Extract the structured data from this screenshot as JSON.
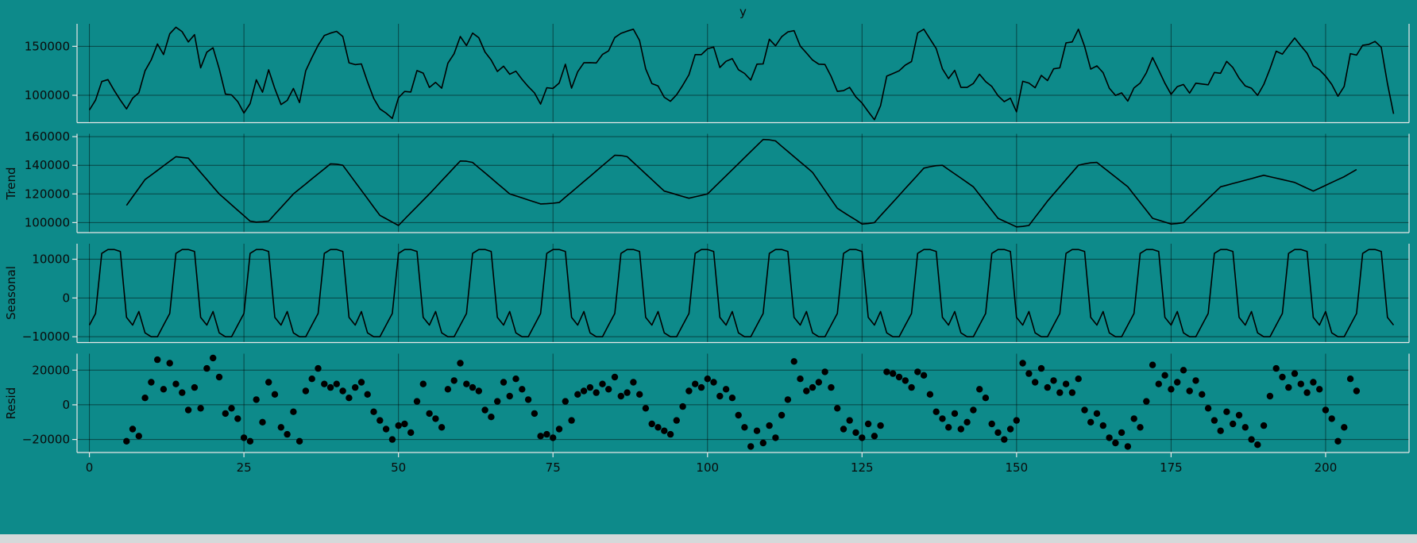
{
  "colors": {
    "background": "#0d8a8a",
    "line": "#000000",
    "grid": "rgba(0,0,0,0.5)",
    "spine": "#e8e8e8",
    "text": "#0a0a0a",
    "bottom_strip": "#d5d9da"
  },
  "x_axis": {
    "ticks": [
      0,
      25,
      50,
      75,
      100,
      125,
      150,
      175,
      200
    ],
    "xlim": [
      -2,
      213.5
    ],
    "xlabel": ""
  },
  "chart_data": [
    {
      "type": "line",
      "name": "y",
      "title": "y",
      "ylabel": "",
      "x_start": 0,
      "yticks": [
        150000,
        100000
      ],
      "ylim": [
        72000,
        173000
      ],
      "values": [
        85000,
        95000,
        114000,
        116000,
        105000,
        95000,
        86000,
        97000,
        102500,
        125000,
        136200,
        152400,
        141600,
        162800,
        169500,
        165000,
        154500,
        162000,
        128000,
        144000,
        148500,
        127000,
        101200,
        100400,
        93600,
        81800,
        91500,
        115800,
        103100,
        126000,
        106800,
        90500,
        94700,
        107000,
        92500,
        125000,
        138500,
        151000,
        161000,
        163500,
        165300,
        160000,
        133200,
        131300,
        132000,
        113700,
        96800,
        86000,
        81700,
        76300,
        97500,
        103900,
        103300,
        125200,
        122600,
        108000,
        113100,
        107200,
        132800,
        142400,
        160000,
        150800,
        163500,
        158800,
        144200,
        136000,
        124300,
        129700,
        121500,
        124600,
        116200,
        108800,
        102400,
        91000,
        107700,
        107000,
        112500,
        131700,
        107300,
        124000,
        133200,
        133300,
        133000,
        141700,
        145300,
        159000,
        163300,
        165500,
        167500,
        156000,
        127000,
        112000,
        109500,
        98000,
        93800,
        100500,
        110200,
        121000,
        141500,
        141500,
        147500,
        149200,
        128400,
        134700,
        137400,
        126100,
        122300,
        115600,
        131800,
        132000,
        157300,
        150500,
        159800,
        164700,
        166000,
        150300,
        143200,
        136000,
        131800,
        131500,
        119200,
        104000,
        104700,
        108000,
        98300,
        92000,
        83300,
        75000,
        89300,
        119500,
        122200,
        125000,
        130800,
        134500,
        163700,
        167500,
        157500,
        147700,
        127000,
        117000,
        125500,
        108000,
        108000,
        112000,
        121500,
        114000,
        109000,
        99500,
        93500,
        97000,
        83000,
        114300,
        112500,
        107700,
        120300,
        115000,
        127000,
        128000,
        153500,
        154500,
        167500,
        150000,
        126700,
        130000,
        123100,
        107200,
        99800,
        102400,
        94000,
        107500,
        112500,
        123000,
        138500,
        125700,
        112300,
        101000,
        108800,
        111000,
        102200,
        112300,
        111500,
        110700,
        123300,
        122500,
        134600,
        128300,
        117400,
        109600,
        107200,
        99900,
        111000,
        127000,
        145000,
        142000,
        150500,
        158500,
        150500,
        143000,
        130000,
        126000,
        119500,
        111000,
        99000,
        109000,
        142500,
        141000,
        151000,
        152000,
        155000,
        149000,
        112000,
        81000
      ]
    },
    {
      "type": "line",
      "name": "trend",
      "ylabel": "Trend",
      "x_start": 6,
      "yticks": [
        160000,
        140000,
        120000,
        100000
      ],
      "ylim": [
        93000,
        162000
      ],
      "values": [
        112000,
        118000,
        124000,
        130000,
        133200,
        136400,
        139600,
        142800,
        146000,
        145500,
        145000,
        140000,
        135000,
        130000,
        125000,
        120000,
        116200,
        112400,
        108600,
        104800,
        101000,
        100300,
        100600,
        101000,
        105800,
        110500,
        115200,
        120000,
        123500,
        127000,
        130500,
        134000,
        137500,
        141000,
        140800,
        140000,
        134200,
        128300,
        122500,
        116700,
        110800,
        105000,
        102700,
        100300,
        98000,
        102400,
        106800,
        111200,
        115600,
        120000,
        124600,
        129200,
        133800,
        138400,
        143000,
        142800,
        142000,
        138300,
        134700,
        131000,
        127300,
        123700,
        120000,
        118600,
        117200,
        115800,
        114400,
        113000,
        113200,
        113500,
        114000,
        117700,
        121300,
        125000,
        128700,
        132300,
        136000,
        139700,
        143300,
        147000,
        146800,
        146000,
        142000,
        138000,
        134000,
        130000,
        126000,
        122000,
        120800,
        119500,
        118200,
        117000,
        118000,
        119000,
        120000,
        124200,
        128400,
        132700,
        136900,
        141100,
        145300,
        149600,
        153800,
        158000,
        157800,
        157000,
        153300,
        149700,
        146000,
        142300,
        138700,
        135000,
        128800,
        122500,
        116200,
        110000,
        107200,
        104500,
        101800,
        99000,
        99300,
        100000,
        104800,
        109500,
        114200,
        119000,
        123800,
        128500,
        133200,
        138000,
        139000,
        139700,
        140000,
        137000,
        134000,
        131000,
        128000,
        125000,
        119500,
        114000,
        108500,
        103000,
        101000,
        99000,
        97000,
        97300,
        98000,
        103700,
        109300,
        115000,
        120000,
        125000,
        130000,
        135000,
        140000,
        141000,
        141700,
        142000,
        138600,
        135200,
        131800,
        128400,
        125000,
        119500,
        114000,
        108500,
        103000,
        101700,
        100300,
        99000,
        99300,
        100000,
        104200,
        108300,
        112500,
        116700,
        120800,
        125000,
        126100,
        127300,
        128400,
        129600,
        130700,
        131900,
        133000,
        132000,
        131000,
        130000,
        129000,
        128000,
        126000,
        124000,
        122000,
        124000,
        126000,
        128000,
        130000,
        132000,
        134500,
        137000
      ]
    },
    {
      "type": "line",
      "name": "seasonal",
      "ylabel": "Seasonal",
      "x_start": 0,
      "yticks": [
        10000,
        0,
        -10000
      ],
      "ylim": [
        -11500,
        14000
      ],
      "period": 12,
      "n_points": 212,
      "pattern": [
        -7000,
        -4000,
        11500,
        12500,
        12500,
        12000,
        -5000,
        -7000,
        -3500,
        -9000,
        -10000,
        -10000
      ]
    },
    {
      "type": "scatter",
      "name": "resid",
      "ylabel": "Resid",
      "x_start": 6,
      "yticks": [
        20000,
        0,
        -20000
      ],
      "ylim": [
        -27500,
        29500
      ],
      "values": [
        -21000,
        -14000,
        -18000,
        4000,
        13000,
        26000,
        9000,
        24000,
        12000,
        7000,
        -3000,
        10000,
        -2000,
        21000,
        27000,
        16000,
        -5000,
        -2000,
        -8000,
        -19000,
        -21000,
        3000,
        -10000,
        13000,
        6000,
        -13000,
        -17000,
        -4000,
        -21000,
        8000,
        15000,
        21000,
        12000,
        10000,
        12000,
        8000,
        4000,
        10000,
        13000,
        6000,
        -4000,
        -9000,
        -14000,
        -20000,
        -12000,
        -11000,
        -16000,
        2000,
        12000,
        -5000,
        -8000,
        -13000,
        9000,
        14000,
        24000,
        12000,
        10000,
        8000,
        -3000,
        -7000,
        2000,
        13000,
        5000,
        15000,
        9000,
        3000,
        -5000,
        -18000,
        -17000,
        -19000,
        -14000,
        2000,
        -9000,
        6000,
        8000,
        10000,
        7000,
        12000,
        9000,
        16000,
        5000,
        7000,
        13000,
        6000,
        -2000,
        -11000,
        -13000,
        -15000,
        -17000,
        -9000,
        -1000,
        8000,
        12000,
        10000,
        15000,
        13000,
        5000,
        9000,
        4000,
        -6000,
        -13000,
        -24000,
        -15000,
        -22000,
        -12000,
        -19000,
        -6000,
        3000,
        25000,
        15000,
        8000,
        10000,
        13000,
        19000,
        10000,
        -2000,
        -14000,
        -9000,
        -16000,
        -19000,
        -11000,
        -18000,
        -12000,
        19000,
        18000,
        16000,
        14000,
        10000,
        19000,
        17000,
        6000,
        -4000,
        -8000,
        -13000,
        -5000,
        -14000,
        -10000,
        -3000,
        9000,
        4000,
        -11000,
        -16000,
        -20000,
        -14000,
        -9000,
        24000,
        18000,
        13000,
        21000,
        10000,
        14000,
        7000,
        12000,
        7000,
        15000,
        -3000,
        -10000,
        -5000,
        -12000,
        -19000,
        -22000,
        -16000,
        -24000,
        -8000,
        -13000,
        2000,
        23000,
        12000,
        17000,
        9000,
        13000,
        20000,
        8000,
        14000,
        6000,
        -2000,
        -9000,
        -15000,
        -4000,
        -11000,
        -6000,
        -13000,
        -20000,
        -23000,
        -12000,
        5000,
        21000,
        16000,
        10000,
        18000,
        12000,
        7000,
        13000,
        9000,
        -3000,
        -8000,
        -21000,
        -13000,
        15000,
        8000
      ]
    }
  ]
}
